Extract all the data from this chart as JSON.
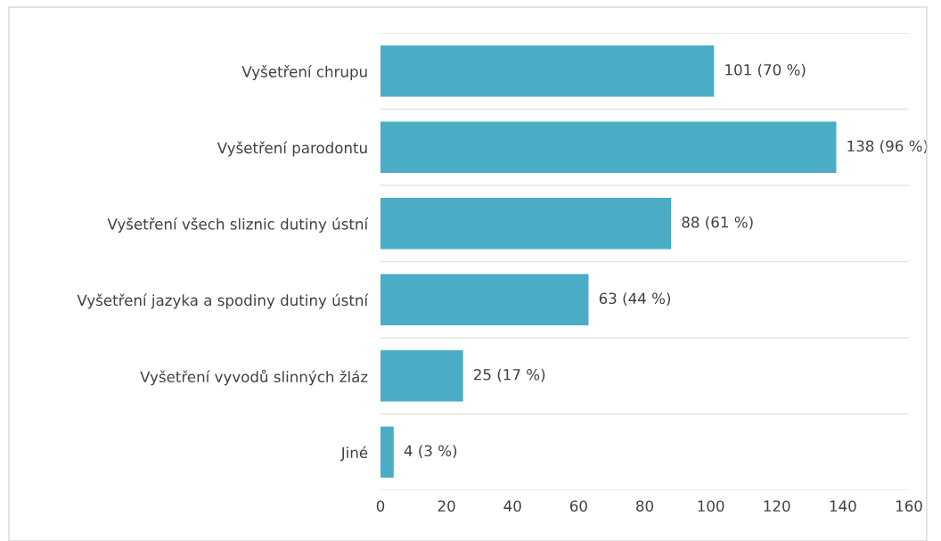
{
  "chart_data": {
    "type": "bar",
    "orientation": "horizontal",
    "categories": [
      "Vyšetření chrupu",
      "Vyšetření parodontu",
      "Vyšetření všech sliznic dutiny ústní",
      "Vyšetření jazyka a spodiny dutiny ústní",
      "Vyšetření vyvodů slinných žláz",
      "Jiné"
    ],
    "values": [
      101,
      138,
      88,
      63,
      25,
      4
    ],
    "value_labels": [
      "101 (70 %)",
      "138 (96 %)",
      "88 (61 %)",
      "63 (44 %)",
      "25 (17 %)",
      "4 (3 %)"
    ],
    "color": "#4bacc6",
    "xlim": [
      0,
      160
    ],
    "xticks": [
      0,
      20,
      40,
      60,
      80,
      100,
      120,
      140,
      160
    ],
    "grid": "y",
    "legend": false
  }
}
